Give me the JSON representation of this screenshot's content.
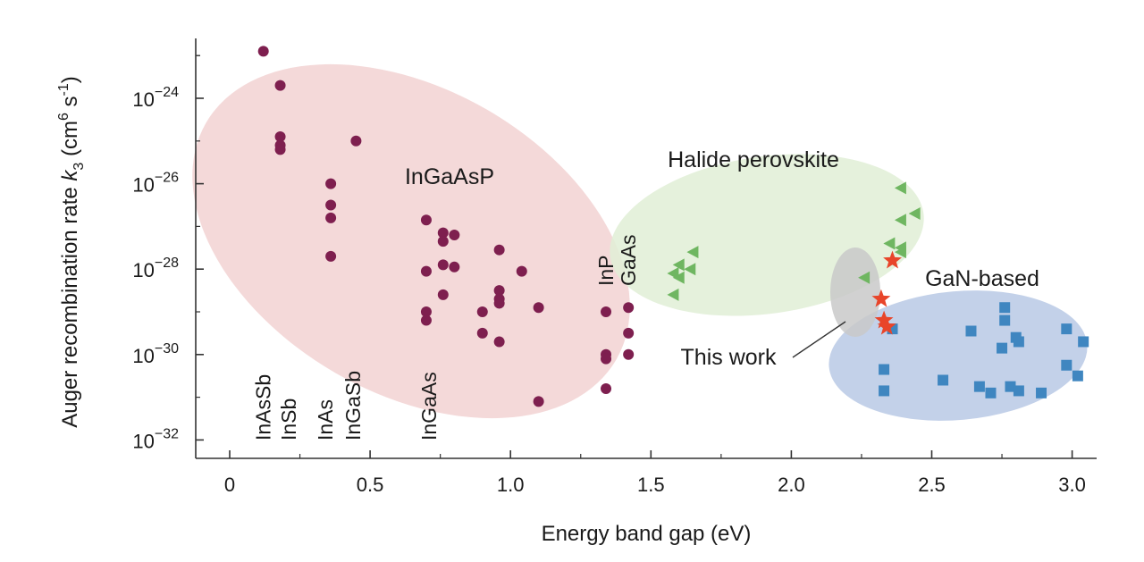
{
  "chart_data": {
    "type": "scatter",
    "title": "",
    "xlabel": "Energy band gap (eV)",
    "ylabel": {
      "prefix": "Auger recombination rate ",
      "symbol": "k",
      "subscript": "3",
      "unit_open": " (cm",
      "unit_exp1": "6",
      "unit_mid": " s",
      "unit_exp2": "-1",
      "unit_close": ")"
    },
    "xlim": [
      0,
      3.2
    ],
    "xticks": [
      0,
      0.5,
      1.0,
      1.5,
      2.0,
      2.5,
      3.0
    ],
    "xtick_labels": [
      "0",
      "0.5",
      "1.0",
      "1.5",
      "2.0",
      "2.5",
      "3.0"
    ],
    "ylim_log10": [
      -32.35,
      -22.2
    ],
    "yticks_log10": [
      -24,
      -26,
      -28,
      -30,
      -32
    ],
    "ytick_label_base": "10",
    "ytick_label_exps": [
      "−24",
      "−26",
      "−28",
      "−30",
      "−32"
    ],
    "grid": false,
    "series": [
      {
        "name": "InGaAsP",
        "marker": "circle",
        "color": "#7e1f4f",
        "points": [
          [
            0.12,
            -22.9
          ],
          [
            0.18,
            -23.7
          ],
          [
            0.18,
            -24.9
          ],
          [
            0.18,
            -25.1
          ],
          [
            0.18,
            -25.2
          ],
          [
            0.45,
            -25.0
          ],
          [
            0.36,
            -26.0
          ],
          [
            0.36,
            -26.5
          ],
          [
            0.36,
            -26.8
          ],
          [
            0.36,
            -27.7
          ],
          [
            0.7,
            -26.85
          ],
          [
            0.76,
            -27.15
          ],
          [
            0.8,
            -27.2
          ],
          [
            0.76,
            -27.35
          ],
          [
            0.76,
            -27.9
          ],
          [
            0.8,
            -27.95
          ],
          [
            0.7,
            -28.05
          ],
          [
            0.96,
            -27.55
          ],
          [
            1.04,
            -28.05
          ],
          [
            0.76,
            -28.6
          ],
          [
            0.96,
            -28.5
          ],
          [
            0.96,
            -28.7
          ],
          [
            0.7,
            -29.0
          ],
          [
            0.9,
            -29.0
          ],
          [
            0.96,
            -28.8
          ],
          [
            1.1,
            -28.9
          ],
          [
            0.7,
            -29.2
          ],
          [
            0.9,
            -29.5
          ],
          [
            0.96,
            -29.7
          ],
          [
            1.34,
            -29.0
          ],
          [
            1.42,
            -28.9
          ],
          [
            1.42,
            -29.5
          ],
          [
            1.34,
            -30.0
          ],
          [
            1.34,
            -30.1
          ],
          [
            1.42,
            -30.0
          ],
          [
            1.34,
            -30.8
          ],
          [
            1.1,
            -31.1
          ]
        ]
      },
      {
        "name": "Halide perovskite",
        "marker": "triangle-left",
        "color": "#6fb661",
        "points": [
          [
            1.58,
            -28.6
          ],
          [
            1.58,
            -28.1
          ],
          [
            1.6,
            -27.9
          ],
          [
            1.6,
            -28.2
          ],
          [
            1.64,
            -28.0
          ],
          [
            1.65,
            -27.6
          ],
          [
            2.39,
            -26.1
          ],
          [
            2.44,
            -26.7
          ],
          [
            2.39,
            -26.85
          ],
          [
            2.39,
            -27.6
          ],
          [
            2.39,
            -27.5
          ],
          [
            2.35,
            -27.4
          ],
          [
            2.26,
            -28.2
          ]
        ]
      },
      {
        "name": "GaN-based",
        "marker": "square",
        "color": "#3f86c0",
        "points": [
          [
            2.36,
            -29.4
          ],
          [
            2.33,
            -30.35
          ],
          [
            2.33,
            -30.85
          ],
          [
            2.54,
            -30.6
          ],
          [
            2.64,
            -29.45
          ],
          [
            2.67,
            -30.75
          ],
          [
            2.71,
            -30.9
          ],
          [
            2.75,
            -29.85
          ],
          [
            2.76,
            -28.9
          ],
          [
            2.76,
            -29.2
          ],
          [
            2.78,
            -30.75
          ],
          [
            2.8,
            -29.6
          ],
          [
            2.81,
            -29.7
          ],
          [
            2.81,
            -30.85
          ],
          [
            2.89,
            -30.9
          ],
          [
            2.98,
            -29.4
          ],
          [
            2.98,
            -30.25
          ],
          [
            3.02,
            -30.5
          ],
          [
            3.04,
            -29.7
          ]
        ]
      },
      {
        "name": "This work",
        "marker": "star",
        "color": "#e8452a",
        "points": [
          [
            2.36,
            -27.8
          ],
          [
            2.32,
            -28.7
          ],
          [
            2.33,
            -29.2
          ],
          [
            2.34,
            -29.35
          ]
        ]
      }
    ],
    "regions": [
      {
        "name": "InGaAsP",
        "label": "InGaAsP",
        "color": "#f0cccc"
      },
      {
        "name": "Halide perovskite",
        "label": "Halide perovskite",
        "color": "#e1efd6"
      },
      {
        "name": "GaN-based",
        "label": "GaN-based",
        "color": "#b9c9e5"
      },
      {
        "name": "This work",
        "label": "This work",
        "color": "#c9c9c9"
      }
    ],
    "material_labels": [
      {
        "text": "InAsSb",
        "x": 0.12
      },
      {
        "text": "InSb",
        "x": 0.21
      },
      {
        "text": "InAs",
        "x": 0.34
      },
      {
        "text": "InGaSb",
        "x": 0.44
      },
      {
        "text": "InGaAs",
        "x": 0.71
      },
      {
        "text": "InP",
        "x": 1.34
      },
      {
        "text": "GaAs",
        "x": 1.42
      }
    ]
  }
}
